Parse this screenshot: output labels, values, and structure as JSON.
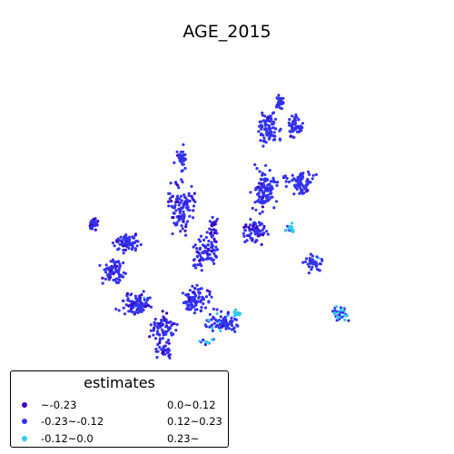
{
  "title": "AGE_2015",
  "legend": {
    "title": "estimates",
    "items": [
      {
        "label": "~-0.23",
        "color": "#3a00c4"
      },
      {
        "label": "-0.23~-0.12",
        "color": "#3333ee"
      },
      {
        "label": "-0.12~0.0",
        "color": "#33c9f0"
      },
      {
        "label": "0.0~0.12",
        "color": null
      },
      {
        "label": "0.12~0.23",
        "color": null
      },
      {
        "label": "0.23~",
        "color": null
      }
    ]
  }
}
